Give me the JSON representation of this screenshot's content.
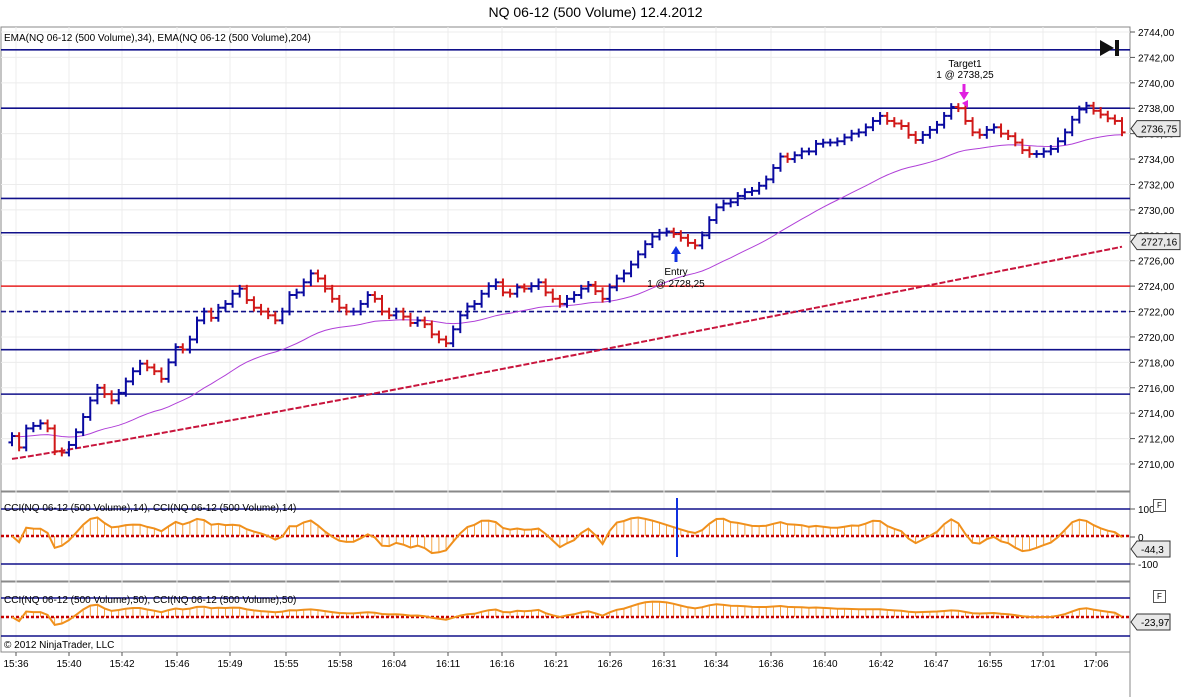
{
  "window": {
    "title": "NQ 06-12 (500 Volume)  12.4.2012"
  },
  "indicators": {
    "ema_label": "EMA(NQ 06-12 (500 Volume),34), EMA(NQ 06-12 (500 Volume),204)",
    "cci14_label": "CCI(NQ 06-12 (500 Volume),14), CCI(NQ 06-12 (500 Volume),14)",
    "cci50_label": "CCI(NQ 06-12 (500 Volume),50), CCI(NQ 06-12 (500 Volume),50)",
    "copyright": "© 2012 NinjaTrader, LLC",
    "f_button": "F"
  },
  "annotations": {
    "target_title": "Target1",
    "target_detail": "1 @ 2738,25",
    "entry_title": "Entry",
    "entry_detail": "1 @ 2728,25"
  },
  "colors": {
    "up_bar": "#0a0aa0",
    "down_bar": "#d01818",
    "level_line": "#10108a",
    "red_line": "#e82020",
    "ema34": "#b040d8",
    "ema204": "#c8143c",
    "cci": "#f0901c",
    "zero_line": "#c80000"
  },
  "chart_data": {
    "type": "ohlc-bar",
    "price_axis": {
      "ylim": [
        2709,
        2744
      ],
      "ticks": [
        "2744,00",
        "2742,00",
        "2740,00",
        "2738,00",
        "2736,00",
        "2734,00",
        "2732,00",
        "2730,00",
        "2728,00",
        "2726,00",
        "2724,00",
        "2722,00",
        "2720,00",
        "2718,00",
        "2716,00",
        "2714,00",
        "2712,00",
        "2710,00"
      ],
      "tick_values": [
        2744,
        2742,
        2740,
        2738,
        2736,
        2734,
        2732,
        2730,
        2728,
        2726,
        2724,
        2722,
        2720,
        2718,
        2716,
        2714,
        2712,
        2710
      ],
      "last_price": "2736,75",
      "ema_last": "2727,16"
    },
    "time_axis": [
      "15:36",
      "15:40",
      "15:42",
      "15:46",
      "15:49",
      "15:55",
      "15:58",
      "16:04",
      "16:11",
      "16:16",
      "16:21",
      "16:26",
      "16:31",
      "16:34",
      "16:36",
      "16:40",
      "16:42",
      "16:47",
      "16:55",
      "17:01",
      "17:06"
    ],
    "levels": [
      {
        "price": 2742.6,
        "style": "solid",
        "color": "level"
      },
      {
        "price": 2738.0,
        "style": "solid",
        "color": "level"
      },
      {
        "price": 2730.9,
        "style": "solid",
        "color": "level"
      },
      {
        "price": 2728.2,
        "style": "solid",
        "color": "level"
      },
      {
        "price": 2724.0,
        "style": "solid",
        "color": "red"
      },
      {
        "price": 2722.0,
        "style": "dashed",
        "color": "level"
      },
      {
        "price": 2719.0,
        "style": "solid",
        "color": "level"
      },
      {
        "price": 2715.5,
        "style": "solid",
        "color": "level"
      }
    ],
    "closes": [
      2712.2,
      2711.3,
      2712.8,
      2713.0,
      2713.2,
      2712.8,
      2711.0,
      2710.9,
      2711.5,
      2712.5,
      2713.7,
      2715.0,
      2716.0,
      2715.5,
      2715.0,
      2715.6,
      2716.5,
      2717.3,
      2717.9,
      2717.6,
      2717.3,
      2716.7,
      2718.0,
      2719.2,
      2719.0,
      2719.8,
      2721.3,
      2722.0,
      2721.5,
      2722.3,
      2722.6,
      2723.4,
      2723.8,
      2722.9,
      2722.3,
      2722.0,
      2721.7,
      2721.3,
      2722.0,
      2723.3,
      2723.5,
      2724.3,
      2725.0,
      2724.6,
      2723.8,
      2723.0,
      2722.3,
      2722.0,
      2722.0,
      2722.6,
      2723.3,
      2723.0,
      2722.0,
      2721.7,
      2722.0,
      2721.6,
      2721.1,
      2721.3,
      2721.0,
      2720.2,
      2719.8,
      2719.5,
      2720.6,
      2721.7,
      2722.4,
      2722.6,
      2723.4,
      2724.0,
      2724.3,
      2723.5,
      2723.4,
      2723.9,
      2723.8,
      2724.0,
      2724.3,
      2723.5,
      2723.0,
      2722.6,
      2723.0,
      2723.3,
      2723.8,
      2724.1,
      2723.6,
      2723.0,
      2723.9,
      2724.6,
      2725.0,
      2725.7,
      2726.5,
      2727.3,
      2727.9,
      2728.2,
      2728.3,
      2728.1,
      2727.8,
      2727.4,
      2727.2,
      2728.0,
      2729.2,
      2730.2,
      2730.5,
      2730.6,
      2731.1,
      2731.4,
      2731.5,
      2731.9,
      2732.4,
      2733.3,
      2734.2,
      2734.0,
      2734.3,
      2734.6,
      2734.6,
      2735.2,
      2735.3,
      2735.3,
      2735.4,
      2735.7,
      2736.0,
      2736.1,
      2736.5,
      2737.0,
      2737.4,
      2737.0,
      2736.8,
      2736.6,
      2735.9,
      2735.5,
      2735.9,
      2736.3,
      2736.7,
      2737.4,
      2738.1,
      2738.0,
      2737.0,
      2736.1,
      2735.9,
      2736.3,
      2736.5,
      2736.0,
      2735.8,
      2735.3,
      2734.7,
      2734.4,
      2734.4,
      2734.6,
      2734.8,
      2735.4,
      2736.1,
      2737.1,
      2737.9,
      2738.2,
      2737.8,
      2737.5,
      2737.2,
      2737.0,
      2736.1
    ]
  }
}
